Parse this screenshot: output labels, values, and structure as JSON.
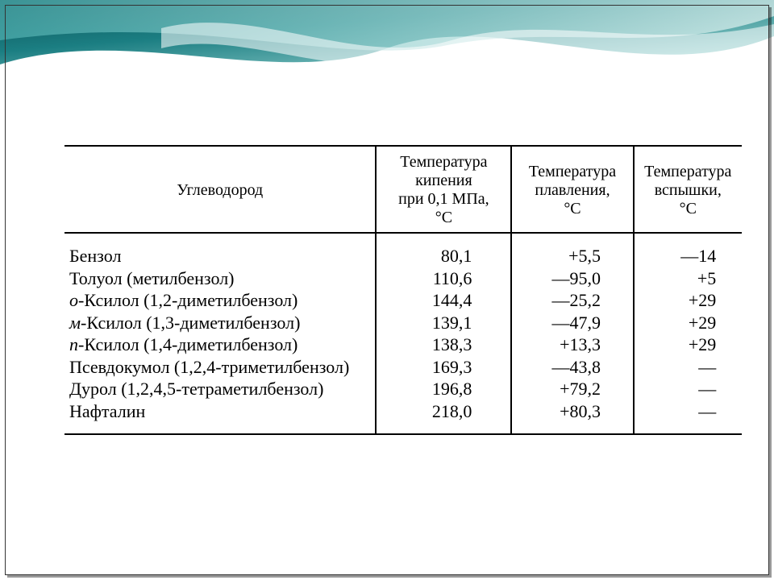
{
  "table": {
    "type": "table",
    "background_color": "#ffffff",
    "border_color": "#000000",
    "text_color": "#000000",
    "font_family": "Times New Roman",
    "header_fontsize_pt": 15,
    "body_fontsize_pt": 17,
    "columns": [
      {
        "label": "Углеводород",
        "align": "left",
        "width_pct": 46
      },
      {
        "label": "Температура кипения при 0,1 МПа, °С",
        "align": "center",
        "width_pct": 20
      },
      {
        "label": "Температура плавления, °С",
        "align": "center",
        "width_pct": 18
      },
      {
        "label": "Температура вспышки, °С",
        "align": "center",
        "width_pct": 16
      }
    ],
    "rows": [
      {
        "name_prefix": "",
        "name": "Бензол",
        "boil": "80,1",
        "melt": "+5,5",
        "flash": "—14"
      },
      {
        "name_prefix": "",
        "name": "Толуол (метилбензол)",
        "boil": "110,6",
        "melt": "—95,0",
        "flash": "+5"
      },
      {
        "name_prefix": "о",
        "name": "-Ксилол (1,2-диметилбензол)",
        "boil": "144,4",
        "melt": "—25,2",
        "flash": "+29"
      },
      {
        "name_prefix": "м",
        "name": "-Ксилол (1,3-диметилбензол)",
        "boil": "139,1",
        "melt": "—47,9",
        "flash": "+29"
      },
      {
        "name_prefix": "п",
        "name": "-Ксилол (1,4-диметилбензол)",
        "boil": "138,3",
        "melt": "+13,3",
        "flash": "+29"
      },
      {
        "name_prefix": "",
        "name": "Псевдокумол (1,2,4-триметилбензол)",
        "boil": "169,3",
        "melt": "—43,8",
        "flash": "—"
      },
      {
        "name_prefix": "",
        "name": "Дурол (1,2,4,5-тетраметилбензол)",
        "boil": "196,8",
        "melt": "+79,2",
        "flash": "—"
      },
      {
        "name_prefix": "",
        "name": "Нафталин",
        "boil": "218,0",
        "melt": "+80,3",
        "flash": "—"
      }
    ]
  },
  "decor": {
    "wave_colors": [
      "#0b4f55",
      "#1b7e82",
      "#4fb0b0",
      "#a8dedb",
      "#e6f5f3"
    ]
  }
}
